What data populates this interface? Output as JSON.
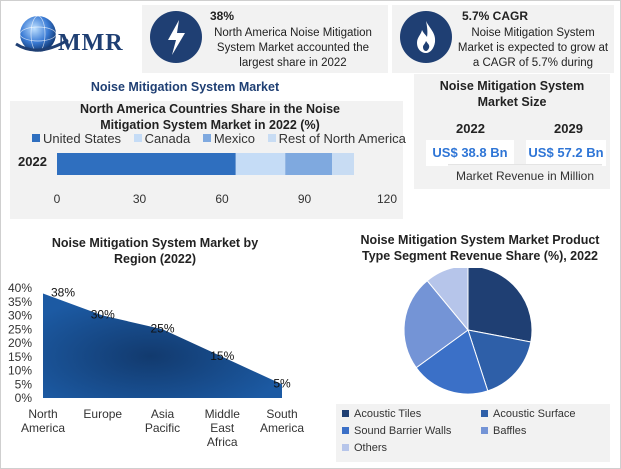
{
  "brand": {
    "name": "MMR"
  },
  "header_cards": [
    {
      "icon": "lightning-bolt-icon",
      "headline": "38%",
      "text": "North America Noise Mitigation System Market accounted the largest share in 2022"
    },
    {
      "icon": "flame-icon",
      "headline": "5.7% CAGR",
      "text": "Noise Mitigation System Market is expected to grow at a CAGR of 5.7% during"
    }
  ],
  "section_title": "Noise Mitigation System Market",
  "market_size": {
    "title": "Noise Mitigation System Market Size",
    "years": [
      "2022",
      "2029"
    ],
    "values": [
      "US$ 38.8 Bn",
      "US$ 57.2 Bn"
    ],
    "caption": "Market Revenue in Million"
  },
  "colors": {
    "dark_blue": "#1f3f73",
    "accent_blue": "#2e75d6",
    "panel_gray": "#f2f2f2"
  },
  "chart_data": [
    {
      "type": "bar",
      "orientation": "horizontal",
      "stacked": true,
      "title": "North America Countries Share in the Noise Mitigation System Market in 2022 (%)",
      "categories": [
        "2022"
      ],
      "series": [
        {
          "name": "United States",
          "values": [
            65
          ],
          "color": "#2f6fbf"
        },
        {
          "name": "Canada",
          "values": [
            18
          ],
          "color": "#c5dcf6"
        },
        {
          "name": "Mexico",
          "values": [
            17
          ],
          "color": "#7fa9df"
        },
        {
          "name": "Rest of North America",
          "values": [
            8
          ],
          "color": "#c8dcf3"
        }
      ],
      "xticks": [
        "0",
        "30",
        "60",
        "90",
        "120"
      ],
      "xlim": [
        0,
        120
      ],
      "legend": "top"
    },
    {
      "type": "area",
      "title": "Noise Mitigation System Market by Region (2022)",
      "categories": [
        "North America",
        "Europe",
        "Asia Pacific",
        "Middle East Africa",
        "South America"
      ],
      "values": [
        38,
        30,
        25,
        15,
        5
      ],
      "labels": [
        "38%",
        "30%",
        "25%",
        "15%",
        "5%"
      ],
      "yticks": [
        "0%",
        "5%",
        "10%",
        "15%",
        "20%",
        "25%",
        "30%",
        "35%",
        "40%"
      ],
      "ylim": [
        0,
        40
      ],
      "color": "#1c5aa3"
    },
    {
      "type": "pie",
      "title": "Noise Mitigation System Market Product Type Segment Revenue Share (%), 2022",
      "labels": [
        "Acoustic Tiles",
        "Acoustic Surface",
        "Sound Barrier Walls",
        "Baffles",
        "Others"
      ],
      "values": [
        28,
        17,
        20,
        24,
        11
      ],
      "colors": [
        "#1f3f73",
        "#2e5fa8",
        "#3b70c7",
        "#7494d6",
        "#b6c5ea"
      ],
      "legend": "bottom"
    }
  ]
}
